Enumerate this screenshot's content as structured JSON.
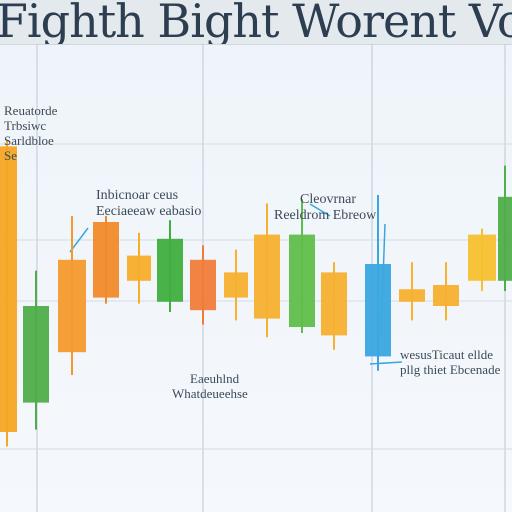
{
  "chart_data": {
    "type": "candlestick",
    "title": "Fighth Bight Worent Vor",
    "y_range": [
      0,
      100
    ],
    "grid": true,
    "candles": [
      {
        "open": 78,
        "close": 10,
        "high": 78,
        "low": 8,
        "color": "#f5a623"
      },
      {
        "open": 17,
        "close": 40,
        "high": 47,
        "low": 12,
        "color": "#4fae4a"
      },
      {
        "open": 51,
        "close": 29,
        "high": 60,
        "low": 25,
        "color": "#f39a2c"
      },
      {
        "open": 60,
        "close": 42,
        "high": 60,
        "low": 42,
        "color": "#f08a2a"
      },
      {
        "open": 52,
        "close": 46,
        "high": 56,
        "low": 42,
        "color": "#f7ae2a"
      },
      {
        "open": 41,
        "close": 56,
        "high": 59,
        "low": 40,
        "color": "#3fae3f"
      },
      {
        "open": 51,
        "close": 39,
        "high": 53,
        "low": 37,
        "color": "#f07c3a"
      },
      {
        "open": 48,
        "close": 42,
        "high": 52,
        "low": 38,
        "color": "#f7b030"
      },
      {
        "open": 57,
        "close": 37,
        "high": 63,
        "low": 34,
        "color": "#f7b030"
      },
      {
        "open": 35,
        "close": 57,
        "high": 64,
        "low": 35,
        "color": "#5fbe4a"
      },
      {
        "open": 48,
        "close": 33,
        "high": 49,
        "low": 31,
        "color": "#f7b030"
      },
      {
        "open": 50,
        "close": 28,
        "high": 65,
        "low": 26,
        "color": "#3aa6e0"
      },
      {
        "open": 44,
        "close": 41,
        "high": 49,
        "low": 38,
        "color": "#f7b030"
      },
      {
        "open": 45,
        "close": 40,
        "high": 49,
        "low": 38,
        "color": "#f7b030"
      },
      {
        "open": 57,
        "close": 46,
        "high": 57,
        "low": 45,
        "color": "#f7c030"
      },
      {
        "open": 46,
        "close": 66,
        "high": 72,
        "low": 45,
        "color": "#4fae4a"
      }
    ],
    "annotations": [
      {
        "lines": [
          "Reuatorde",
          "Trbsiwc",
          "Sarldbloe",
          "Se"
        ]
      },
      {
        "lines": [
          "Inbicnoar ceus",
          "Eeciaeeaw eabasio"
        ]
      },
      {
        "lines": [
          "Cleovrnar",
          "Reeldrom Ebreow"
        ]
      },
      {
        "lines": [
          "Eaeuhlnd",
          "Whatdeueehse"
        ]
      },
      {
        "lines": [
          "wesusTicaut ellde",
          "pllg thiet Ebcenade"
        ]
      }
    ]
  }
}
